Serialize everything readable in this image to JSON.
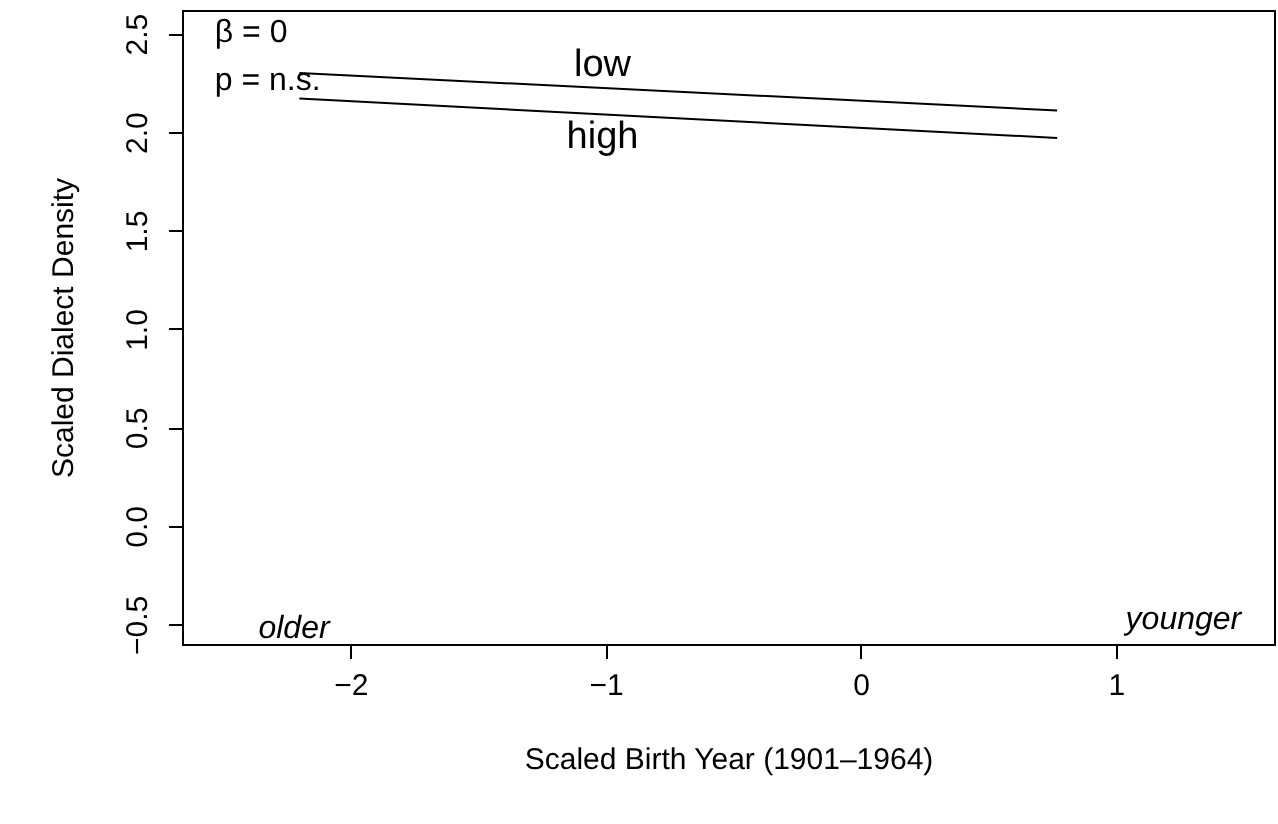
{
  "chart_data": {
    "type": "line",
    "xlabel": "Scaled Birth Year (1901–1964)",
    "ylabel": "Scaled Dialect Density",
    "xlim": [
      -2.66,
      1.62
    ],
    "xticks": [
      {
        "value": -2,
        "label": "−2"
      },
      {
        "value": -1,
        "label": "−1"
      },
      {
        "value": 0,
        "label": "0"
      },
      {
        "value": 1,
        "label": "1"
      }
    ],
    "ylim": [
      -0.6,
      2.62
    ],
    "yticks": [
      {
        "value": -0.5,
        "label": "−0.5"
      },
      {
        "value": 0,
        "label": "0.0"
      },
      {
        "value": 0.5,
        "label": "0.5"
      },
      {
        "value": 1,
        "label": "1.0"
      },
      {
        "value": 1.5,
        "label": "1.5"
      },
      {
        "value": 2,
        "label": "2.0"
      },
      {
        "value": 2.5,
        "label": "2.5"
      }
    ],
    "grid": false,
    "marker": "none",
    "line_style": "solid",
    "x": [
      -2.2,
      0.77
    ],
    "series": [
      {
        "name": "low",
        "color": "#000000",
        "values": [
          2.3,
          2.11
        ]
      },
      {
        "name": "high",
        "color": "#000000",
        "values": [
          2.17,
          1.97
        ]
      }
    ],
    "annotations": [
      "β = 0",
      "p = n.s.",
      "older",
      "younger"
    ]
  }
}
